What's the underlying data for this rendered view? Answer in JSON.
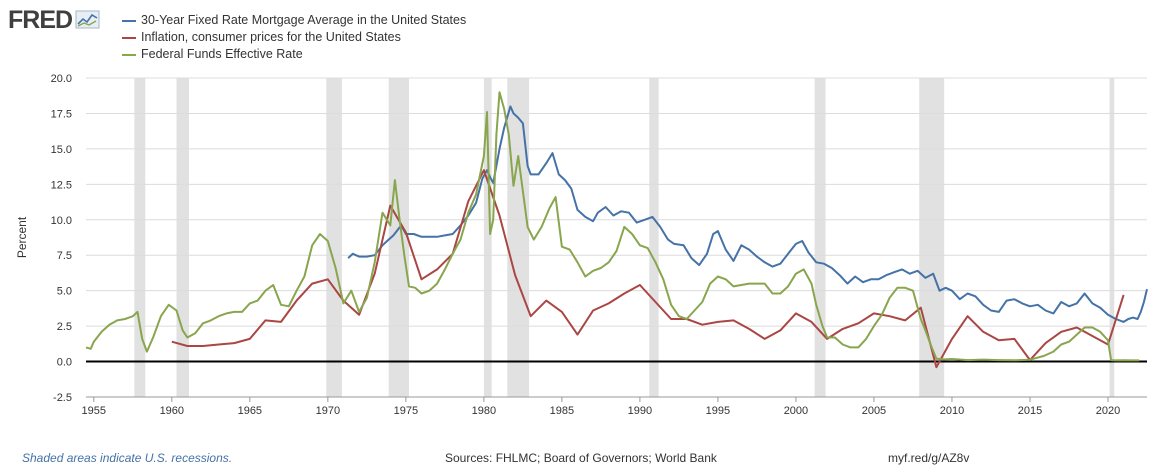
{
  "header": {
    "logo_text": "FRED"
  },
  "legend": [
    {
      "label": "30-Year Fixed Rate Mortgage Average in the United States",
      "color": "#4572a7"
    },
    {
      "label": "Inflation, consumer prices for the United States",
      "color": "#aa4643"
    },
    {
      "label": "Federal Funds Effective Rate",
      "color": "#89a54e"
    }
  ],
  "footer": {
    "recession_note": "Shaded areas indicate U.S. recessions.",
    "sources": "Sources: FHLMC; Board of Governors; World Bank",
    "short_url": "myf.red/g/AZ8v"
  },
  "chart_data": {
    "type": "line",
    "ylabel": "Percent",
    "xlabel": "",
    "xlim": [
      1954.5,
      2022.5
    ],
    "ylim": [
      -2.5,
      20
    ],
    "y_ticks": [
      "20.0",
      "17.5",
      "15.0",
      "12.5",
      "10.0",
      "7.5",
      "5.0",
      "2.5",
      "0.0",
      "-2.5"
    ],
    "x_ticks": [
      "1955",
      "1960",
      "1965",
      "1970",
      "1975",
      "1980",
      "1985",
      "1990",
      "1995",
      "2000",
      "2005",
      "2010",
      "2015",
      "2020"
    ],
    "recessions": [
      [
        1957.6,
        1958.3
      ],
      [
        1960.3,
        1961.1
      ],
      [
        1969.9,
        1970.9
      ],
      [
        1973.9,
        1975.2
      ],
      [
        1980.0,
        1980.5
      ],
      [
        1981.5,
        1982.9
      ],
      [
        1990.6,
        1991.2
      ],
      [
        2001.2,
        2001.9
      ],
      [
        2007.9,
        2009.5
      ],
      [
        2020.1,
        2020.4
      ]
    ],
    "series": [
      {
        "name": "30-Year Fixed Rate Mortgage Average in the United States",
        "color": "#4572a7",
        "x": [
          1971.3,
          1971.6,
          1972,
          1972.5,
          1973,
          1973.5,
          1973.8,
          1974.2,
          1974.7,
          1975,
          1975.5,
          1976,
          1976.5,
          1977,
          1977.5,
          1978,
          1978.5,
          1979,
          1979.5,
          1979.9,
          1980.2,
          1980.4,
          1980.6,
          1980.8,
          1981,
          1981.3,
          1981.7,
          1981.9,
          1982.2,
          1982.5,
          1982.8,
          1983,
          1983.5,
          1984,
          1984.4,
          1984.8,
          1985.2,
          1985.6,
          1986,
          1986.5,
          1987,
          1987.3,
          1987.8,
          1988.3,
          1988.8,
          1989.3,
          1989.8,
          1990.3,
          1990.8,
          1991.3,
          1991.8,
          1992.2,
          1992.8,
          1993.3,
          1993.8,
          1994.3,
          1994.7,
          1995,
          1995.5,
          1996,
          1996.5,
          1997,
          1997.5,
          1998,
          1998.5,
          1999,
          1999.5,
          2000,
          2000.4,
          2000.8,
          2001.3,
          2001.8,
          2002.3,
          2002.8,
          2003.3,
          2003.8,
          2004.3,
          2004.8,
          2005.3,
          2005.8,
          2006.3,
          2006.8,
          2007.3,
          2007.8,
          2008.3,
          2008.8,
          2009.2,
          2009.6,
          2010,
          2010.5,
          2011,
          2011.5,
          2012,
          2012.5,
          2013,
          2013.5,
          2014,
          2014.5,
          2015,
          2015.5,
          2016,
          2016.5,
          2017,
          2017.5,
          2018,
          2018.5,
          2019,
          2019.5,
          2020,
          2020.5,
          2021,
          2021.3,
          2021.6,
          2021.9,
          2022.1,
          2022.3,
          2022.5
        ],
        "y": [
          7.3,
          7.6,
          7.4,
          7.4,
          7.5,
          8.2,
          8.5,
          8.9,
          9.6,
          9.0,
          9.0,
          8.8,
          8.8,
          8.8,
          8.9,
          9.0,
          9.6,
          10.3,
          11.2,
          12.9,
          13.5,
          13.0,
          12.6,
          13.8,
          15.0,
          16.5,
          18.0,
          17.5,
          17.2,
          16.8,
          13.8,
          13.2,
          13.2,
          14.0,
          14.7,
          13.2,
          12.8,
          12.2,
          10.7,
          10.2,
          9.9,
          10.5,
          10.9,
          10.3,
          10.6,
          10.5,
          9.8,
          10.0,
          10.2,
          9.5,
          8.6,
          8.3,
          8.2,
          7.3,
          6.8,
          7.6,
          9.0,
          9.2,
          7.9,
          7.1,
          8.2,
          7.9,
          7.4,
          7.0,
          6.7,
          6.9,
          7.6,
          8.3,
          8.5,
          7.7,
          7.0,
          6.9,
          6.6,
          6.1,
          5.5,
          6.0,
          5.6,
          5.8,
          5.8,
          6.1,
          6.3,
          6.5,
          6.2,
          6.4,
          5.9,
          6.2,
          5.0,
          5.2,
          5.0,
          4.4,
          4.8,
          4.6,
          4.0,
          3.6,
          3.5,
          4.3,
          4.4,
          4.1,
          3.9,
          4.0,
          3.6,
          3.4,
          4.2,
          3.9,
          4.1,
          4.8,
          4.1,
          3.8,
          3.3,
          3.0,
          2.8,
          3.0,
          3.1,
          3.0,
          3.5,
          4.2,
          5.1
        ]
      },
      {
        "name": "Inflation, consumer prices for the United States",
        "color": "#aa4643",
        "x": [
          1960,
          1961,
          1962,
          1963,
          1964,
          1965,
          1966,
          1967,
          1968,
          1969,
          1970,
          1971,
          1972,
          1973,
          1974,
          1975,
          1976,
          1977,
          1978,
          1979,
          1980,
          1981,
          1982,
          1983,
          1984,
          1985,
          1986,
          1987,
          1988,
          1989,
          1990,
          1991,
          1992,
          1993,
          1994,
          1995,
          1996,
          1997,
          1998,
          1999,
          2000,
          2001,
          2002,
          2003,
          2004,
          2005,
          2006,
          2007,
          2008,
          2009,
          2010,
          2011,
          2012,
          2013,
          2014,
          2015,
          2016,
          2017,
          2018,
          2019,
          2020,
          2021
        ],
        "y": [
          1.4,
          1.1,
          1.1,
          1.2,
          1.3,
          1.6,
          2.9,
          2.8,
          4.3,
          5.5,
          5.8,
          4.3,
          3.3,
          6.2,
          11.0,
          9.1,
          5.8,
          6.5,
          7.6,
          11.3,
          13.5,
          10.3,
          6.1,
          3.2,
          4.3,
          3.5,
          1.9,
          3.6,
          4.1,
          4.8,
          5.4,
          4.2,
          3.0,
          3.0,
          2.6,
          2.8,
          2.9,
          2.3,
          1.6,
          2.2,
          3.4,
          2.8,
          1.6,
          2.3,
          2.7,
          3.4,
          3.2,
          2.9,
          3.8,
          -0.4,
          1.6,
          3.2,
          2.1,
          1.5,
          1.6,
          0.1,
          1.3,
          2.1,
          2.4,
          1.8,
          1.2,
          4.7
        ]
      },
      {
        "name": "Federal Funds Effective Rate",
        "color": "#89a54e",
        "x": [
          1954.5,
          1954.8,
          1955,
          1955.5,
          1956,
          1956.5,
          1957,
          1957.5,
          1957.8,
          1958.1,
          1958.4,
          1958.8,
          1959.3,
          1959.8,
          1960.3,
          1960.7,
          1961,
          1961.5,
          1962,
          1962.5,
          1963,
          1963.5,
          1964,
          1964.5,
          1965,
          1965.5,
          1966,
          1966.5,
          1967,
          1967.5,
          1968,
          1968.5,
          1969,
          1969.5,
          1970,
          1970.5,
          1971,
          1971.5,
          1972,
          1972.5,
          1973,
          1973.5,
          1974,
          1974.3,
          1974.6,
          1974.9,
          1975.2,
          1975.6,
          1976,
          1976.5,
          1977,
          1977.5,
          1978,
          1978.5,
          1979,
          1979.5,
          1980,
          1980.2,
          1980.4,
          1980.6,
          1980.8,
          1981,
          1981.3,
          1981.6,
          1981.9,
          1982.2,
          1982.5,
          1982.8,
          1983.2,
          1983.7,
          1984.2,
          1984.6,
          1985,
          1985.5,
          1986,
          1986.5,
          1987,
          1987.5,
          1988,
          1988.5,
          1989,
          1989.5,
          1990,
          1990.5,
          1991,
          1991.5,
          1992,
          1992.5,
          1993,
          1994,
          1994.5,
          1995,
          1995.5,
          1996,
          1997,
          1998,
          1998.5,
          1999,
          1999.5,
          2000,
          2000.5,
          2001,
          2001.3,
          2001.7,
          2002,
          2002.5,
          2003,
          2003.5,
          2004,
          2004.5,
          2005,
          2005.5,
          2006,
          2006.5,
          2007,
          2007.5,
          2008,
          2008.3,
          2008.7,
          2009,
          2009.5,
          2010,
          2011,
          2012,
          2013,
          2014,
          2015,
          2015.9,
          2016.5,
          2017,
          2017.5,
          2018,
          2018.5,
          2019,
          2019.5,
          2020,
          2020.2,
          2020.5,
          2021,
          2021.5,
          2022
        ],
        "y": [
          1.0,
          0.9,
          1.4,
          2.1,
          2.6,
          2.9,
          3.0,
          3.2,
          3.5,
          1.6,
          0.7,
          1.7,
          3.2,
          4.0,
          3.6,
          2.2,
          1.7,
          2.0,
          2.7,
          2.9,
          3.2,
          3.4,
          3.5,
          3.5,
          4.1,
          4.3,
          5.0,
          5.4,
          4.0,
          3.9,
          5.0,
          6.0,
          8.2,
          9.0,
          8.5,
          6.6,
          4.1,
          5.0,
          3.5,
          4.5,
          7.0,
          10.5,
          9.6,
          12.8,
          10.0,
          7.5,
          5.3,
          5.2,
          4.8,
          5.0,
          5.5,
          6.5,
          7.6,
          8.6,
          10.5,
          11.8,
          14.5,
          17.6,
          9.0,
          10.0,
          16.0,
          19.0,
          17.8,
          16.0,
          12.4,
          14.5,
          12.0,
          9.5,
          8.6,
          9.5,
          10.8,
          11.6,
          8.1,
          7.9,
          7.0,
          6.0,
          6.4,
          6.6,
          7.0,
          7.8,
          9.5,
          9.0,
          8.2,
          8.0,
          7.0,
          5.8,
          4.0,
          3.2,
          3.0,
          4.2,
          5.5,
          6.0,
          5.8,
          5.3,
          5.5,
          5.5,
          4.8,
          4.8,
          5.3,
          6.2,
          6.5,
          5.5,
          4.0,
          2.5,
          1.7,
          1.7,
          1.2,
          1.0,
          1.0,
          1.6,
          2.5,
          3.3,
          4.5,
          5.2,
          5.2,
          5.0,
          3.0,
          2.2,
          1.0,
          0.2,
          0.15,
          0.18,
          0.1,
          0.14,
          0.1,
          0.09,
          0.13,
          0.4,
          0.7,
          1.2,
          1.4,
          1.9,
          2.4,
          2.4,
          2.1,
          1.5,
          0.1,
          0.08,
          0.09,
          0.08,
          0.08
        ]
      }
    ]
  }
}
